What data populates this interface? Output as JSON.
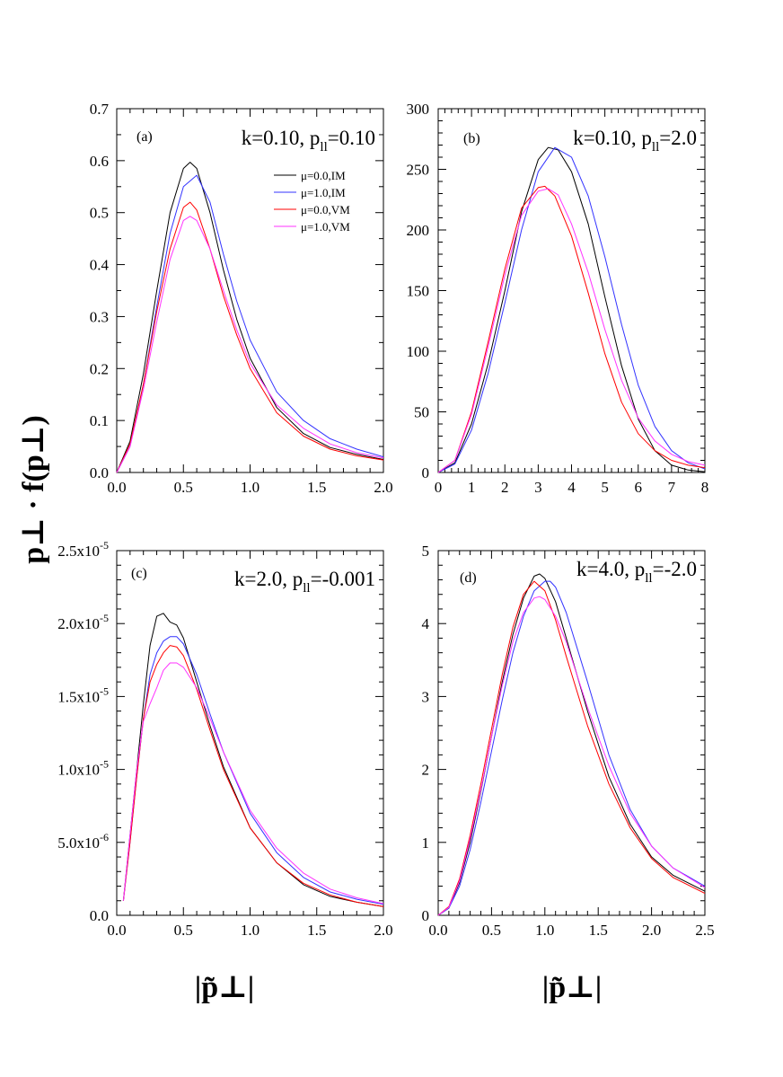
{
  "figure": {
    "ylabel": "p⊥ · f(p⊥)",
    "xlabel": "|p̃⊥|"
  },
  "legend": [
    {
      "label": "μ=0.0,IM",
      "color": "#000000"
    },
    {
      "label": "μ=1.0,IM",
      "color": "#3333ff"
    },
    {
      "label": "μ=0.0,VM",
      "color": "#ff0000"
    },
    {
      "label": "μ=1.0,VM",
      "color": "#ff33ff"
    }
  ],
  "chart_data": [
    {
      "type": "line",
      "panel": "(a)",
      "title": "k=0.10, p",
      "title_sub": "ll",
      "title_tail": "=0.10",
      "xlim": [
        0,
        2.0
      ],
      "ylim": [
        0,
        0.7
      ],
      "xticks": [
        0,
        0.5,
        1.0,
        1.5,
        2.0
      ],
      "xtick_labels": [
        "0.0",
        "0.5",
        "1.0",
        "1.5",
        "2.0"
      ],
      "xminor": 5,
      "yticks": [
        0,
        0.1,
        0.2,
        0.3,
        0.4,
        0.5,
        0.6,
        0.7
      ],
      "ytick_labels": [
        "0.0",
        "0.1",
        "0.2",
        "0.3",
        "0.4",
        "0.5",
        "0.6",
        "0.7"
      ],
      "yminor": 2,
      "series": [
        {
          "name": "μ=0.0,IM",
          "x": [
            0,
            0.1,
            0.2,
            0.3,
            0.4,
            0.5,
            0.55,
            0.6,
            0.7,
            0.8,
            0.9,
            1.0,
            1.2,
            1.4,
            1.6,
            1.8,
            2.0
          ],
          "y": [
            0,
            0.06,
            0.19,
            0.35,
            0.5,
            0.585,
            0.597,
            0.585,
            0.5,
            0.39,
            0.295,
            0.22,
            0.125,
            0.075,
            0.048,
            0.035,
            0.025
          ]
        },
        {
          "name": "μ=1.0,IM",
          "x": [
            0,
            0.1,
            0.2,
            0.3,
            0.4,
            0.5,
            0.6,
            0.7,
            0.8,
            0.9,
            1.0,
            1.2,
            1.4,
            1.6,
            1.8,
            2.0
          ],
          "y": [
            0,
            0.05,
            0.17,
            0.32,
            0.46,
            0.55,
            0.572,
            0.52,
            0.42,
            0.33,
            0.255,
            0.155,
            0.1,
            0.065,
            0.045,
            0.03
          ]
        },
        {
          "name": "μ=0.0,VM",
          "x": [
            0,
            0.1,
            0.2,
            0.3,
            0.4,
            0.5,
            0.55,
            0.6,
            0.7,
            0.8,
            0.9,
            1.0,
            1.2,
            1.4,
            1.6,
            1.8,
            2.0
          ],
          "y": [
            0,
            0.055,
            0.17,
            0.31,
            0.43,
            0.51,
            0.52,
            0.505,
            0.43,
            0.34,
            0.265,
            0.2,
            0.115,
            0.07,
            0.045,
            0.032,
            0.024
          ]
        },
        {
          "name": "μ=1.0,VM",
          "x": [
            0,
            0.1,
            0.2,
            0.3,
            0.4,
            0.5,
            0.55,
            0.6,
            0.7,
            0.8,
            0.9,
            1.0,
            1.2,
            1.4,
            1.6,
            1.8,
            2.0
          ],
          "y": [
            0,
            0.05,
            0.16,
            0.29,
            0.41,
            0.485,
            0.493,
            0.485,
            0.43,
            0.35,
            0.275,
            0.21,
            0.13,
            0.085,
            0.055,
            0.038,
            0.028
          ]
        }
      ]
    },
    {
      "type": "line",
      "panel": "(b)",
      "title": "k=0.10, p",
      "title_sub": "ll",
      "title_tail": "=2.0",
      "xlim": [
        0,
        8
      ],
      "ylim": [
        0,
        300
      ],
      "xticks": [
        0,
        1,
        2,
        3,
        4,
        5,
        6,
        7,
        8
      ],
      "xtick_labels": [
        "0",
        "1",
        "2",
        "3",
        "4",
        "5",
        "6",
        "7",
        "8"
      ],
      "xminor": 5,
      "yticks": [
        0,
        50,
        100,
        150,
        200,
        250,
        300
      ],
      "ytick_labels": [
        "0",
        "50",
        "100",
        "150",
        "200",
        "250",
        "300"
      ],
      "yminor": 5,
      "series": [
        {
          "name": "μ=0.0,IM",
          "x": [
            0,
            0.5,
            1,
            1.5,
            2,
            2.5,
            3,
            3.3,
            3.6,
            4,
            4.5,
            5,
            5.5,
            6,
            6.5,
            7,
            7.5,
            8
          ],
          "y": [
            0,
            8,
            40,
            90,
            150,
            215,
            258,
            268,
            266,
            248,
            205,
            145,
            88,
            44,
            18,
            6,
            2,
            0.5
          ]
        },
        {
          "name": "μ=1.0,IM",
          "x": [
            0,
            0.5,
            1,
            1.5,
            2,
            2.5,
            3,
            3.5,
            4,
            4.5,
            5,
            5.5,
            6,
            6.5,
            7,
            7.5,
            8
          ],
          "y": [
            0,
            7,
            35,
            82,
            140,
            200,
            248,
            268,
            260,
            228,
            178,
            122,
            72,
            38,
            18,
            8,
            3
          ]
        },
        {
          "name": "μ=0.0,VM",
          "x": [
            0,
            0.5,
            1,
            1.5,
            2,
            2.5,
            3,
            3.2,
            3.5,
            4,
            4.5,
            5,
            5.5,
            6,
            6.5,
            7,
            7.5,
            8
          ],
          "y": [
            0,
            10,
            50,
            108,
            168,
            218,
            235,
            236,
            228,
            195,
            148,
            98,
            58,
            32,
            18,
            10,
            6,
            4
          ]
        },
        {
          "name": "μ=1.0,VM",
          "x": [
            0,
            0.5,
            1,
            1.5,
            2,
            2.5,
            3,
            3.3,
            3.6,
            4,
            4.5,
            5,
            5.5,
            6,
            6.5,
            7,
            7.5,
            8
          ],
          "y": [
            0,
            10,
            48,
            104,
            163,
            212,
            232,
            234,
            229,
            205,
            165,
            118,
            76,
            45,
            26,
            15,
            9,
            6
          ]
        }
      ]
    },
    {
      "type": "line",
      "panel": "(c)",
      "title": "k=2.0, p",
      "title_sub": "ll",
      "title_tail": "=-0.001",
      "xlim": [
        0,
        2.0
      ],
      "ylim": [
        0,
        2.5e-05
      ],
      "xticks": [
        0,
        0.5,
        1.0,
        1.5,
        2.0
      ],
      "xtick_labels": [
        "0.0",
        "0.5",
        "1.0",
        "1.5",
        "2.0"
      ],
      "xminor": 5,
      "yticks": [
        0,
        5e-06,
        1e-05,
        1.5e-05,
        2e-05,
        2.5e-05
      ],
      "ytick_labels": [
        "0.0",
        "5.0x10",
        "1.0x10",
        "1.5x10",
        "2.0x10",
        "2.5x10"
      ],
      "ytick_exponents": [
        "",
        "-6",
        "-5",
        "-5",
        "-5",
        "-5"
      ],
      "yminor": 5,
      "series": [
        {
          "name": "μ=0.0,IM",
          "x": [
            0.05,
            0.1,
            0.15,
            0.2,
            0.25,
            0.3,
            0.35,
            0.4,
            0.45,
            0.5,
            0.6,
            0.7,
            0.8,
            1.0,
            1.2,
            1.4,
            1.6,
            1.8,
            2.0
          ],
          "y": [
            1e-06,
            5.5e-06,
            1e-05,
            1.45e-05,
            1.85e-05,
            2.05e-05,
            2.07e-05,
            2.01e-05,
            1.99e-05,
            1.9e-05,
            1.6e-05,
            1.3e-05,
            1.02e-05,
            6e-06,
            3.6e-06,
            2.1e-06,
            1.3e-06,
            9e-07,
            6e-07
          ]
        },
        {
          "name": "μ=1.0,IM",
          "x": [
            0.05,
            0.1,
            0.15,
            0.2,
            0.25,
            0.3,
            0.35,
            0.4,
            0.45,
            0.5,
            0.6,
            0.7,
            0.8,
            1.0,
            1.2,
            1.4,
            1.6,
            1.8,
            2.0
          ],
          "y": [
            1e-06,
            5e-06,
            9.5e-06,
            1.35e-05,
            1.65e-05,
            1.8e-05,
            1.88e-05,
            1.91e-05,
            1.91e-05,
            1.86e-05,
            1.65e-05,
            1.38e-05,
            1.12e-05,
            7e-06,
            4.3e-06,
            2.6e-06,
            1.6e-06,
            1.1e-06,
            7.5e-07
          ]
        },
        {
          "name": "μ=0.0,VM",
          "x": [
            0.05,
            0.1,
            0.15,
            0.2,
            0.25,
            0.3,
            0.35,
            0.4,
            0.45,
            0.5,
            0.6,
            0.7,
            0.8,
            1.0,
            1.2,
            1.4,
            1.6,
            1.8,
            2.0
          ],
          "y": [
            1e-06,
            5e-06,
            9.5e-06,
            1.35e-05,
            1.6e-05,
            1.72e-05,
            1.8e-05,
            1.85e-05,
            1.84e-05,
            1.78e-05,
            1.55e-05,
            1.27e-05,
            1e-05,
            6e-06,
            3.6e-06,
            2.2e-06,
            1.4e-06,
            9e-07,
            6e-07
          ]
        },
        {
          "name": "μ=1.0,VM",
          "x": [
            0.05,
            0.1,
            0.15,
            0.2,
            0.25,
            0.3,
            0.35,
            0.4,
            0.45,
            0.5,
            0.6,
            0.7,
            0.8,
            1.0,
            1.2,
            1.4,
            1.6,
            1.8,
            2.0
          ],
          "y": [
            1e-06,
            5.5e-06,
            1e-05,
            1.33e-05,
            1.45e-05,
            1.56e-05,
            1.68e-05,
            1.73e-05,
            1.73e-05,
            1.7e-05,
            1.56e-05,
            1.35e-05,
            1.12e-05,
            7.2e-06,
            4.6e-06,
            2.9e-06,
            1.8e-06,
            1.2e-06,
            8e-07
          ]
        }
      ]
    },
    {
      "type": "line",
      "panel": "(d)",
      "title": "k=4.0, p",
      "title_sub": "ll",
      "title_tail": "=-2.0",
      "xlim": [
        0,
        2.5
      ],
      "ylim": [
        0,
        5
      ],
      "xticks": [
        0,
        0.5,
        1.0,
        1.5,
        2.0,
        2.5
      ],
      "xtick_labels": [
        "0.0",
        "0.5",
        "1.0",
        "1.5",
        "2.0",
        "2.5"
      ],
      "xminor": 5,
      "yticks": [
        0,
        1,
        2,
        3,
        4,
        5
      ],
      "ytick_labels": [
        "0",
        "1",
        "2",
        "3",
        "4",
        "5"
      ],
      "yminor": 5,
      "series": [
        {
          "name": "μ=0.0,IM",
          "x": [
            0,
            0.1,
            0.2,
            0.3,
            0.4,
            0.5,
            0.6,
            0.7,
            0.8,
            0.9,
            0.95,
            1.0,
            1.1,
            1.2,
            1.4,
            1.6,
            1.8,
            2.0,
            2.2,
            2.5
          ],
          "y": [
            0,
            0.1,
            0.45,
            1.0,
            1.7,
            2.45,
            3.2,
            3.85,
            4.35,
            4.65,
            4.68,
            4.62,
            4.3,
            3.8,
            2.8,
            1.9,
            1.25,
            0.8,
            0.55,
            0.33
          ]
        },
        {
          "name": "μ=1.0,IM",
          "x": [
            0,
            0.1,
            0.2,
            0.3,
            0.4,
            0.5,
            0.6,
            0.7,
            0.8,
            0.9,
            1.0,
            1.05,
            1.1,
            1.2,
            1.4,
            1.6,
            1.8,
            2.0,
            2.2,
            2.5
          ],
          "y": [
            0,
            0.1,
            0.4,
            0.9,
            1.55,
            2.25,
            2.95,
            3.6,
            4.1,
            4.45,
            4.58,
            4.58,
            4.5,
            4.15,
            3.2,
            2.2,
            1.45,
            0.95,
            0.65,
            0.4
          ]
        },
        {
          "name": "μ=0.0,VM",
          "x": [
            0,
            0.1,
            0.2,
            0.3,
            0.4,
            0.5,
            0.6,
            0.7,
            0.8,
            0.9,
            1.0,
            1.1,
            1.2,
            1.4,
            1.6,
            1.8,
            2.0,
            2.2,
            2.5
          ],
          "y": [
            0,
            0.12,
            0.5,
            1.1,
            1.8,
            2.55,
            3.3,
            3.95,
            4.4,
            4.58,
            4.45,
            4.05,
            3.55,
            2.6,
            1.8,
            1.2,
            0.78,
            0.52,
            0.3
          ]
        },
        {
          "name": "μ=1.0,VM",
          "x": [
            0,
            0.1,
            0.2,
            0.3,
            0.4,
            0.5,
            0.6,
            0.7,
            0.8,
            0.9,
            0.95,
            1.0,
            1.1,
            1.2,
            1.4,
            1.6,
            1.8,
            2.0,
            2.2,
            2.5
          ],
          "y": [
            0,
            0.11,
            0.47,
            1.05,
            1.72,
            2.45,
            3.15,
            3.75,
            4.15,
            4.35,
            4.37,
            4.33,
            4.1,
            3.75,
            2.85,
            2.05,
            1.4,
            0.95,
            0.65,
            0.38
          ]
        }
      ]
    }
  ]
}
